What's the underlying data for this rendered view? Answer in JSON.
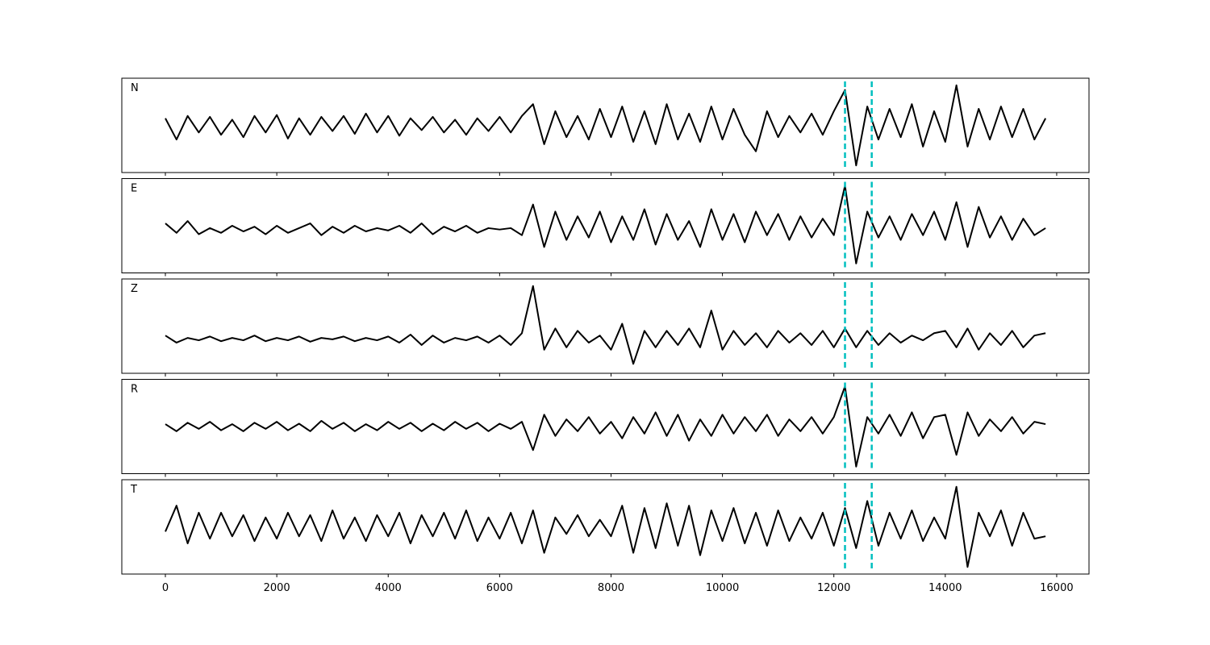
{
  "chart_data": {
    "type": "line",
    "x": [
      0,
      200,
      400,
      600,
      800,
      1000,
      1200,
      1400,
      1600,
      1800,
      2000,
      2200,
      2400,
      2600,
      2800,
      3000,
      3200,
      3400,
      3600,
      3800,
      4000,
      4200,
      4400,
      4600,
      4800,
      5000,
      5200,
      5400,
      5600,
      5800,
      6000,
      6200,
      6400,
      6600,
      6800,
      7000,
      7200,
      7400,
      7600,
      7800,
      8000,
      8200,
      8400,
      8600,
      8800,
      9000,
      9200,
      9400,
      9600,
      9800,
      10000,
      10200,
      10400,
      10600,
      10800,
      11000,
      11200,
      11400,
      11600,
      11800,
      12000,
      12200,
      12400,
      12600,
      12800,
      13000,
      13200,
      13400,
      13600,
      13800,
      14000,
      14200,
      14400,
      14600,
      14800,
      15000,
      15200,
      15400,
      15600,
      15800
    ],
    "xlim": [
      -782,
      16580
    ],
    "xticks": [
      0,
      2000,
      4000,
      6000,
      8000,
      10000,
      12000,
      14000,
      16000
    ],
    "ylim": [
      -1,
      1
    ],
    "vlines": [
      12200,
      12680
    ],
    "vline_color": "#00bfbf",
    "series": [
      {
        "name": "N",
        "color": "#000000",
        "values": [
          0.15,
          -0.3,
          0.2,
          -0.15,
          0.18,
          -0.2,
          0.12,
          -0.25,
          0.2,
          -0.15,
          0.22,
          -0.28,
          0.15,
          -0.2,
          0.18,
          -0.12,
          0.2,
          -0.18,
          0.25,
          -0.15,
          0.2,
          -0.22,
          0.15,
          -0.1,
          0.18,
          -0.15,
          0.12,
          -0.2,
          0.15,
          -0.12,
          0.18,
          -0.15,
          0.2,
          0.45,
          -0.4,
          0.3,
          -0.25,
          0.2,
          -0.3,
          0.35,
          -0.25,
          0.4,
          -0.35,
          0.3,
          -0.4,
          0.45,
          -0.3,
          0.25,
          -0.35,
          0.4,
          -0.3,
          0.35,
          -0.2,
          -0.55,
          0.3,
          -0.25,
          0.2,
          -0.15,
          0.25,
          -0.2,
          0.3,
          0.75,
          -0.85,
          0.4,
          -0.3,
          0.35,
          -0.25,
          0.45,
          -0.45,
          0.3,
          -0.35,
          0.85,
          -0.45,
          0.35,
          -0.3,
          0.4,
          -0.25,
          0.35,
          -0.3,
          0.15
        ]
      },
      {
        "name": "E",
        "color": "#000000",
        "values": [
          0.05,
          -0.15,
          0.1,
          -0.18,
          -0.05,
          -0.15,
          0.0,
          -0.12,
          -0.02,
          -0.18,
          0.0,
          -0.15,
          -0.05,
          0.05,
          -0.2,
          -0.02,
          -0.15,
          0.0,
          -0.12,
          -0.05,
          -0.1,
          0.0,
          -0.15,
          0.05,
          -0.18,
          -0.02,
          -0.12,
          0.0,
          -0.15,
          -0.05,
          -0.08,
          -0.05,
          -0.2,
          0.45,
          -0.45,
          0.3,
          -0.3,
          0.2,
          -0.25,
          0.3,
          -0.35,
          0.2,
          -0.3,
          0.35,
          -0.4,
          0.25,
          -0.3,
          0.1,
          -0.45,
          0.35,
          -0.3,
          0.25,
          -0.35,
          0.3,
          -0.2,
          0.25,
          -0.3,
          0.2,
          -0.25,
          0.15,
          -0.2,
          0.85,
          -0.8,
          0.3,
          -0.25,
          0.2,
          -0.3,
          0.25,
          -0.2,
          0.3,
          -0.3,
          0.5,
          -0.45,
          0.4,
          -0.25,
          0.2,
          -0.3,
          0.15,
          -0.2,
          -0.05
        ]
      },
      {
        "name": "Z",
        "color": "#000000",
        "values": [
          -0.2,
          -0.35,
          -0.25,
          -0.3,
          -0.22,
          -0.32,
          -0.25,
          -0.3,
          -0.2,
          -0.32,
          -0.25,
          -0.3,
          -0.22,
          -0.33,
          -0.25,
          -0.28,
          -0.22,
          -0.32,
          -0.25,
          -0.3,
          -0.22,
          -0.35,
          -0.18,
          -0.4,
          -0.2,
          -0.35,
          -0.25,
          -0.3,
          -0.22,
          -0.35,
          -0.2,
          -0.4,
          -0.15,
          0.85,
          -0.5,
          -0.05,
          -0.45,
          -0.1,
          -0.35,
          -0.2,
          -0.5,
          0.05,
          -0.8,
          -0.1,
          -0.45,
          -0.1,
          -0.4,
          -0.05,
          -0.45,
          0.33,
          -0.5,
          -0.1,
          -0.4,
          -0.15,
          -0.45,
          -0.1,
          -0.35,
          -0.15,
          -0.4,
          -0.1,
          -0.45,
          -0.05,
          -0.45,
          -0.1,
          -0.4,
          -0.15,
          -0.35,
          -0.2,
          -0.3,
          -0.15,
          -0.1,
          -0.45,
          -0.05,
          -0.5,
          -0.15,
          -0.4,
          -0.1,
          -0.45,
          -0.2,
          -0.15
        ]
      },
      {
        "name": "R",
        "color": "#000000",
        "values": [
          0.05,
          -0.1,
          0.08,
          -0.05,
          0.1,
          -0.08,
          0.05,
          -0.1,
          0.08,
          -0.05,
          0.1,
          -0.08,
          0.06,
          -0.1,
          0.12,
          -0.05,
          0.08,
          -0.1,
          0.05,
          -0.08,
          0.1,
          -0.05,
          0.08,
          -0.1,
          0.06,
          -0.08,
          0.1,
          -0.05,
          0.08,
          -0.1,
          0.06,
          -0.05,
          0.1,
          -0.5,
          0.25,
          -0.2,
          0.15,
          -0.1,
          0.2,
          -0.15,
          0.1,
          -0.25,
          0.2,
          -0.15,
          0.3,
          -0.2,
          0.25,
          -0.3,
          0.15,
          -0.2,
          0.25,
          -0.15,
          0.2,
          -0.1,
          0.25,
          -0.2,
          0.15,
          -0.1,
          0.2,
          -0.15,
          0.2,
          0.85,
          -0.85,
          0.2,
          -0.15,
          0.25,
          -0.2,
          0.3,
          -0.25,
          0.2,
          0.25,
          -0.6,
          0.3,
          -0.2,
          0.15,
          -0.1,
          0.2,
          -0.15,
          0.1,
          0.05
        ]
      },
      {
        "name": "T",
        "color": "#000000",
        "values": [
          -0.1,
          0.45,
          -0.35,
          0.3,
          -0.25,
          0.3,
          -0.2,
          0.25,
          -0.3,
          0.2,
          -0.25,
          0.3,
          -0.2,
          0.25,
          -0.3,
          0.35,
          -0.25,
          0.2,
          -0.3,
          0.25,
          -0.2,
          0.3,
          -0.35,
          0.25,
          -0.2,
          0.3,
          -0.25,
          0.35,
          -0.3,
          0.2,
          -0.25,
          0.3,
          -0.35,
          0.35,
          -0.55,
          0.2,
          -0.15,
          0.25,
          -0.2,
          0.15,
          -0.2,
          0.45,
          -0.55,
          0.4,
          -0.45,
          0.5,
          -0.4,
          0.45,
          -0.6,
          0.35,
          -0.3,
          0.4,
          -0.35,
          0.3,
          -0.4,
          0.35,
          -0.3,
          0.2,
          -0.25,
          0.3,
          -0.4,
          0.4,
          -0.45,
          0.55,
          -0.4,
          0.3,
          -0.25,
          0.35,
          -0.3,
          0.2,
          -0.25,
          0.85,
          -0.85,
          0.3,
          -0.2,
          0.35,
          -0.4,
          0.3,
          -0.25,
          -0.2
        ]
      }
    ]
  }
}
